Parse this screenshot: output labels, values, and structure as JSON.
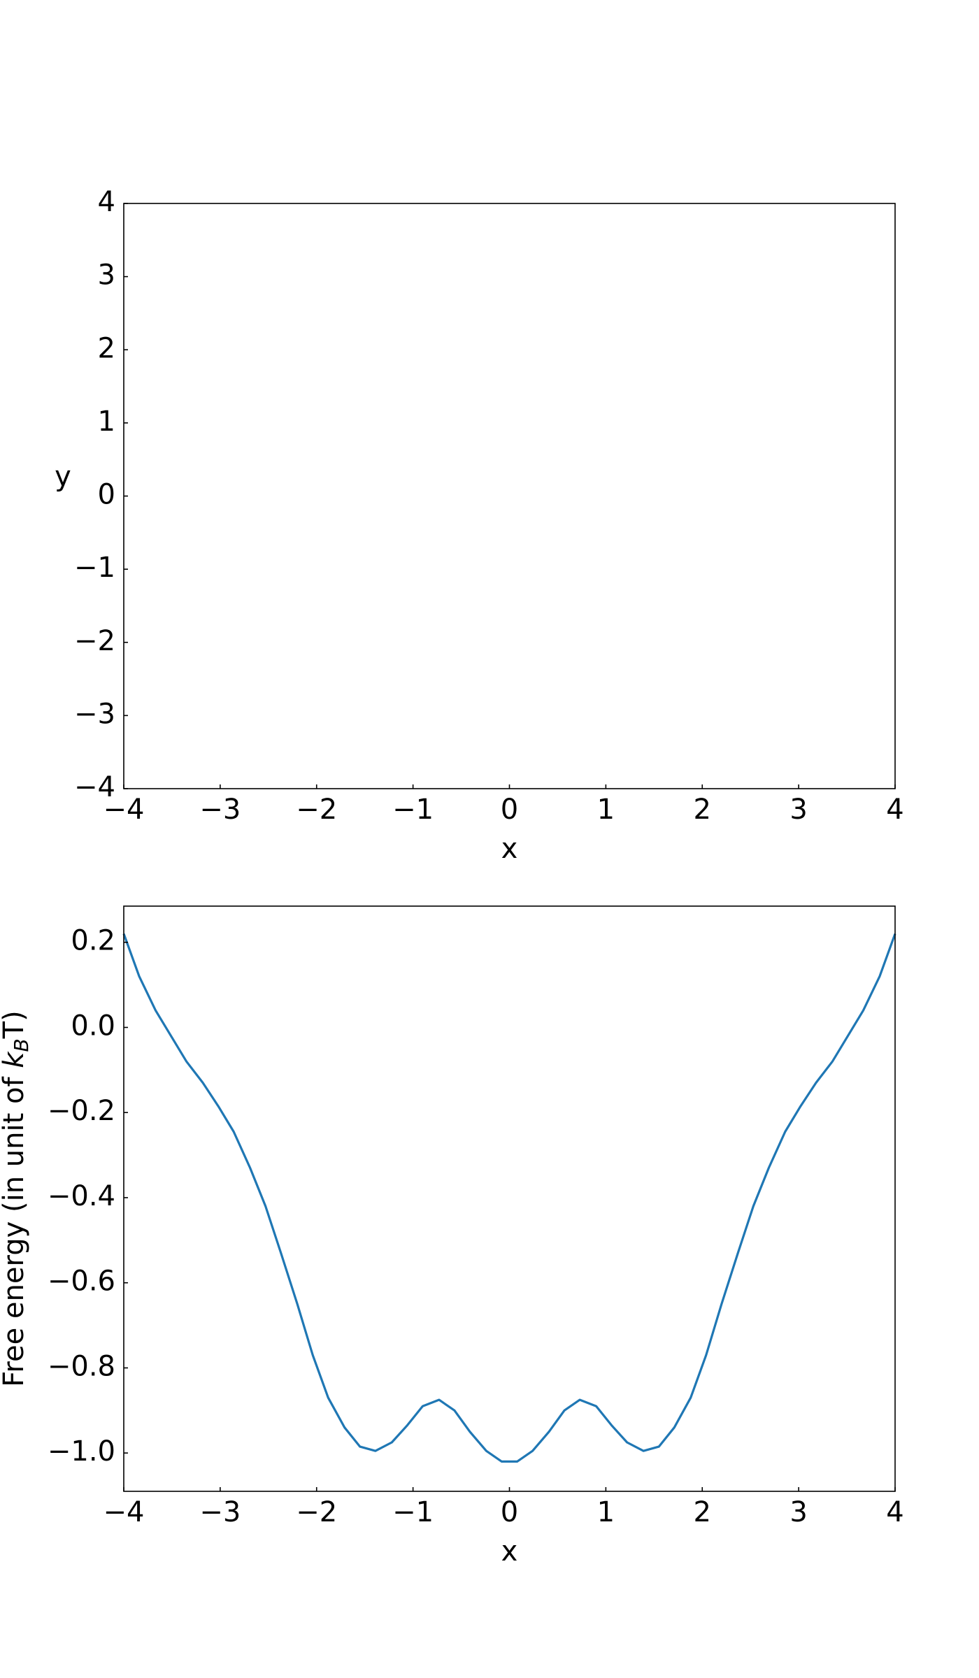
{
  "chart_data": [
    {
      "type": "contour",
      "xlabel": "x",
      "ylabel": "y",
      "xlim": [
        -4,
        4
      ],
      "ylim": [
        -4,
        4
      ],
      "xticks": [
        {
          "value": -4,
          "label": "−4"
        },
        {
          "value": -3,
          "label": "−3"
        },
        {
          "value": -2,
          "label": "−2"
        },
        {
          "value": -1,
          "label": "−1"
        },
        0,
        1,
        2,
        3,
        4
      ],
      "yticks": [
        {
          "value": -4,
          "label": "−4"
        },
        {
          "value": -3,
          "label": "−3"
        },
        {
          "value": -2,
          "label": "−2"
        },
        {
          "value": -1,
          "label": "−1"
        },
        0,
        1,
        2,
        3,
        4
      ],
      "colors": [
        "#fde725",
        "#8fd744",
        "#4ec36b",
        "#25ab82",
        "#21918c",
        "#2a788e",
        "#3b528b",
        "#46337f"
      ]
    },
    {
      "type": "line",
      "xlabel": "x",
      "ylabel": [
        "Free energy (in unit of ",
        "k",
        "B",
        "T)"
      ],
      "xlim": [
        -4,
        4
      ],
      "ylim": [
        -1.09,
        0.285
      ],
      "xticks": [
        {
          "value": -4,
          "label": "−4"
        },
        {
          "value": -3,
          "label": "−3"
        },
        {
          "value": -2,
          "label": "−2"
        },
        {
          "value": -1,
          "label": "−1"
        },
        0,
        1,
        2,
        3,
        4
      ],
      "yticks": [
        {
          "value": 0.2,
          "label": "0.2"
        },
        {
          "value": 0,
          "label": "0.0"
        },
        {
          "value": -0.2,
          "label": "−0.2"
        },
        {
          "value": -0.4,
          "label": "−0.4"
        },
        {
          "value": -0.6,
          "label": "−0.6"
        },
        {
          "value": -0.8,
          "label": "−0.8"
        },
        {
          "value": -1.0,
          "label": "−1.0"
        }
      ],
      "color": "#1f77b4",
      "x": [
        -4.0,
        -3.84,
        -3.67,
        -3.51,
        -3.35,
        -3.18,
        -3.02,
        -2.86,
        -2.69,
        -2.53,
        -2.37,
        -2.2,
        -2.04,
        -1.88,
        -1.71,
        -1.55,
        -1.39,
        -1.22,
        -1.06,
        -0.9,
        -0.73,
        -0.57,
        -0.41,
        -0.24,
        -0.08,
        0.08,
        0.24,
        0.41,
        0.57,
        0.73,
        0.9,
        1.06,
        1.22,
        1.39,
        1.55,
        1.71,
        1.88,
        2.04,
        2.2,
        2.37,
        2.53,
        2.69,
        2.86,
        3.02,
        3.18,
        3.35,
        3.51,
        3.67,
        3.84,
        4.0
      ],
      "values": [
        0.22,
        0.12,
        0.04,
        -0.02,
        -0.08,
        -0.13,
        -0.185,
        -0.245,
        -0.33,
        -0.42,
        -0.53,
        -0.65,
        -0.77,
        -0.87,
        -0.94,
        -0.985,
        -0.995,
        -0.975,
        -0.935,
        -0.89,
        -0.875,
        -0.9,
        -0.95,
        -0.995,
        -1.02,
        -1.02,
        -0.995,
        -0.95,
        -0.9,
        -0.875,
        -0.89,
        -0.935,
        -0.975,
        -0.995,
        -0.985,
        -0.94,
        -0.87,
        -0.77,
        -0.65,
        -0.53,
        -0.42,
        -0.33,
        -0.245,
        -0.185,
        -0.13,
        -0.08,
        -0.02,
        0.04,
        0.12,
        0.22
      ]
    }
  ]
}
